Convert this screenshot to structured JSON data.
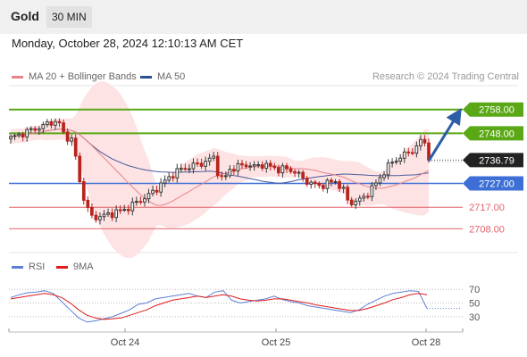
{
  "header": {
    "symbol": "Gold",
    "timeframe": "30 MIN"
  },
  "timestamp": "Monday, October 28, 2024 12:10:13 AM CET",
  "legend": {
    "ma20_label": "MA 20 + Bollinger Bands",
    "ma50_label": "MA 50",
    "rsi_label": "RSI",
    "ma9_label": "9MA"
  },
  "source": "Research © 2024 Trading Central",
  "colors": {
    "bullish": "#3a3a3a",
    "bearish": "#b8241c",
    "ma20": "#e9838a",
    "ma50": "#4a5a9a",
    "band_fill": "#fde3e3",
    "resistance": "#5aa816",
    "support_blue": "#3d6fd6",
    "support_red": "#e0636a",
    "arrow": "#2b5ea7",
    "rsi": "#5d7fd6",
    "rsi_ma": "#e11b1b"
  },
  "chart_data": [
    {
      "type": "candlestick",
      "title": "",
      "x_tick_labels": [
        "Oct 24",
        "Oct 25",
        "Oct 28"
      ],
      "ylim": [
        2698,
        2768
      ],
      "current_price": 2736.79,
      "levels": [
        {
          "value": 2758.0,
          "label": "2758.00",
          "kind": "resistance"
        },
        {
          "value": 2748.0,
          "label": "2748.00",
          "kind": "resistance"
        },
        {
          "value": 2727.0,
          "label": "2727.00",
          "kind": "support"
        },
        {
          "value": 2717.0,
          "label": "2717.00",
          "kind": "support"
        },
        {
          "value": 2708.0,
          "label": "2708.00",
          "kind": "support"
        }
      ],
      "projection": {
        "from": 2736.5,
        "to": 2758.0
      },
      "indicators": [
        "MA 20 + Bollinger Bands",
        "MA 50"
      ],
      "close_path": [
        [
          0,
          2746
        ],
        [
          3,
          2748
        ],
        [
          6,
          2750
        ],
        [
          8,
          2751
        ],
        [
          10,
          2753
        ],
        [
          12,
          2752
        ],
        [
          13,
          2748
        ],
        [
          15,
          2745
        ],
        [
          16,
          2738
        ],
        [
          17,
          2728
        ],
        [
          18,
          2721
        ],
        [
          19,
          2716
        ],
        [
          20,
          2713
        ],
        [
          22,
          2713
        ],
        [
          24,
          2714
        ],
        [
          26,
          2715
        ],
        [
          28,
          2716
        ],
        [
          30,
          2718
        ],
        [
          32,
          2720
        ],
        [
          34,
          2722
        ],
        [
          36,
          2725
        ],
        [
          38,
          2728
        ],
        [
          40,
          2731
        ],
        [
          42,
          2733
        ],
        [
          44,
          2734
        ],
        [
          46,
          2735
        ],
        [
          48,
          2736
        ],
        [
          50,
          2738
        ],
        [
          51,
          2732
        ],
        [
          52,
          2729
        ],
        [
          53,
          2730
        ],
        [
          54,
          2733
        ],
        [
          56,
          2734
        ],
        [
          58,
          2735
        ],
        [
          60,
          2734
        ],
        [
          62,
          2735
        ],
        [
          64,
          2734
        ],
        [
          66,
          2733
        ],
        [
          68,
          2733
        ],
        [
          70,
          2732
        ],
        [
          72,
          2729
        ],
        [
          74,
          2727
        ],
        [
          76,
          2726
        ],
        [
          78,
          2727
        ],
        [
          80,
          2728
        ],
        [
          82,
          2724
        ],
        [
          83,
          2720
        ],
        [
          84,
          2719
        ],
        [
          86,
          2720
        ],
        [
          88,
          2723
        ],
        [
          90,
          2727
        ],
        [
          92,
          2732
        ],
        [
          94,
          2736
        ],
        [
          96,
          2738
        ],
        [
          98,
          2740
        ],
        [
          100,
          2742
        ],
        [
          101,
          2745
        ],
        [
          102,
          2744
        ],
        [
          103,
          2736.79
        ]
      ]
    },
    {
      "type": "line",
      "title": "",
      "series": [
        {
          "name": "RSI",
          "values": [
            58,
            62,
            65,
            66,
            68,
            64,
            52,
            40,
            28,
            22,
            24,
            27,
            30,
            35,
            40,
            48,
            50,
            56,
            58,
            60,
            62,
            64,
            60,
            58,
            66,
            68,
            54,
            50,
            52,
            54,
            56,
            60,
            55,
            52,
            50,
            46,
            44,
            42,
            40,
            38,
            36,
            40,
            48,
            54,
            60,
            64,
            66,
            68,
            67,
            42
          ]
        },
        {
          "name": "9MA",
          "values": [
            56,
            58,
            60,
            62,
            64,
            62,
            58,
            50,
            40,
            32,
            28,
            26,
            27,
            28,
            32,
            36,
            40,
            46,
            50,
            54,
            56,
            58,
            60,
            58,
            60,
            62,
            60,
            56,
            54,
            53,
            54,
            56,
            56,
            54,
            52,
            50,
            47,
            45,
            43,
            41,
            39,
            39,
            42,
            46,
            50,
            55,
            58,
            62,
            64,
            62
          ]
        }
      ],
      "yticks": [
        30,
        50,
        70
      ],
      "ylim": [
        18,
        82
      ]
    }
  ]
}
